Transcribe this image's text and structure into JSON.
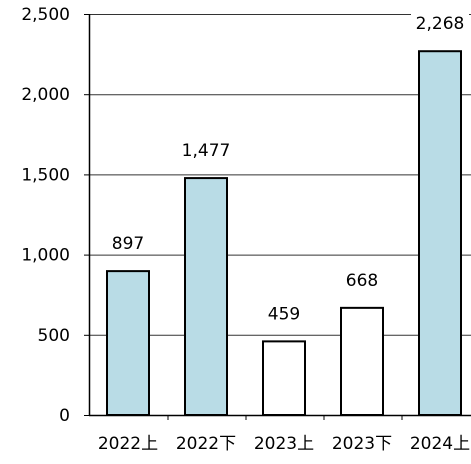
{
  "chart_data": {
    "type": "bar",
    "categories": [
      "2022上",
      "2022下",
      "2023上",
      "2023下",
      "2024上"
    ],
    "values": [
      897,
      1477,
      459,
      668,
      2268
    ],
    "value_labels": [
      "897",
      "1,477",
      "459",
      "668",
      "2,268"
    ],
    "y_ticks": [
      0,
      500,
      1000,
      1500,
      2000,
      2500
    ],
    "y_tick_labels": [
      "0",
      "500",
      "1,000",
      "1,500",
      "2,000",
      "2,500"
    ],
    "ylim": [
      0,
      2500
    ],
    "grid": true,
    "bar_fills": [
      "#b9dce6",
      "#b9dce6",
      "#ffffff",
      "#ffffff",
      "#b9dce6"
    ],
    "bar_stroke": "#000000"
  }
}
